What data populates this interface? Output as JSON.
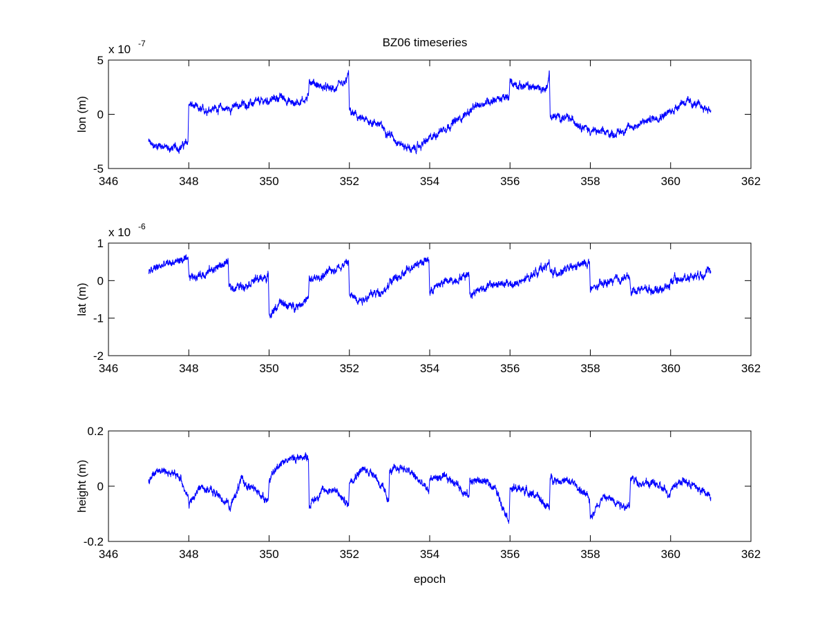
{
  "figure": {
    "title": "BZ06 timeseries",
    "background": "#ffffff",
    "line_color": "#0000ff"
  },
  "chart_data": [
    {
      "type": "line",
      "title": "BZ06 timeseries",
      "ylabel": "lon (m)",
      "xlabel": "",
      "exponent_label": "x 10",
      "exponent": "-7",
      "xlim": [
        346,
        362
      ],
      "ylim": [
        -5,
        5
      ],
      "xticks": [
        "346",
        "348",
        "350",
        "352",
        "354",
        "356",
        "358",
        "360",
        "362"
      ],
      "yticks": [
        "-5",
        "0",
        "5"
      ],
      "grid": false,
      "series": [
        {
          "x": [
            347.0,
            347.1,
            347.3,
            347.5,
            347.8,
            347.98,
            348.0,
            348.3,
            348.6,
            349.0,
            349.3,
            349.6,
            350.0,
            350.3,
            350.6,
            350.98,
            351.0,
            351.3,
            351.6,
            351.9,
            351.98,
            352.0,
            352.3,
            352.7,
            353.0,
            353.3,
            353.6,
            354.0,
            354.3,
            354.6,
            355.0,
            355.3,
            355.6,
            355.98,
            356.0,
            356.3,
            356.6,
            356.9,
            356.98,
            357.0,
            357.3,
            357.6,
            358.0,
            358.3,
            358.6,
            359.0,
            359.3,
            359.6,
            360.0,
            360.3,
            360.6,
            361.0
          ],
          "values": [
            -2.5,
            -3.0,
            -2.8,
            -3.2,
            -3.0,
            -2.6,
            1.0,
            0.3,
            0.6,
            0.5,
            0.9,
            1.0,
            1.3,
            1.6,
            1.0,
            1.5,
            3.2,
            2.5,
            2.3,
            2.8,
            3.8,
            0.3,
            -0.5,
            -0.8,
            -1.8,
            -2.8,
            -3.3,
            -2.3,
            -1.4,
            -0.8,
            0.3,
            1.0,
            1.4,
            1.5,
            3.0,
            2.6,
            2.5,
            2.3,
            3.8,
            -0.2,
            -0.3,
            -0.6,
            -1.5,
            -1.7,
            -1.8,
            -1.2,
            -0.8,
            -0.3,
            0.2,
            1.2,
            0.9,
            0.4
          ]
        }
      ]
    },
    {
      "type": "line",
      "title": "",
      "ylabel": "lat (m)",
      "xlabel": "",
      "exponent_label": "x 10",
      "exponent": "-6",
      "xlim": [
        346,
        362
      ],
      "ylim": [
        -2,
        1
      ],
      "xticks": [
        "346",
        "348",
        "350",
        "352",
        "354",
        "356",
        "358",
        "360",
        "362"
      ],
      "yticks": [
        "-2",
        "-1",
        "0",
        "1"
      ],
      "grid": false,
      "series": [
        {
          "x": [
            347.0,
            347.2,
            347.5,
            347.8,
            347.98,
            348.0,
            348.3,
            348.6,
            348.98,
            349.0,
            349.3,
            349.6,
            349.98,
            350.0,
            350.3,
            350.6,
            350.98,
            351.0,
            351.3,
            351.6,
            351.98,
            352.0,
            352.3,
            352.6,
            352.98,
            353.0,
            353.3,
            353.6,
            353.98,
            354.0,
            354.3,
            354.6,
            354.98,
            355.0,
            355.3,
            355.6,
            355.98,
            356.0,
            356.3,
            356.6,
            356.98,
            357.0,
            357.3,
            357.6,
            357.98,
            358.0,
            358.3,
            358.6,
            358.98,
            359.0,
            359.3,
            359.6,
            359.98,
            360.0,
            360.3,
            360.6,
            361.0
          ],
          "values": [
            0.2,
            0.35,
            0.45,
            0.55,
            0.5,
            0.1,
            0.15,
            0.3,
            0.5,
            -0.2,
            -0.15,
            0.0,
            0.1,
            -0.9,
            -0.6,
            -0.7,
            -0.5,
            0.0,
            0.1,
            0.3,
            0.5,
            -0.4,
            -0.5,
            -0.35,
            -0.2,
            0.0,
            0.1,
            0.45,
            0.55,
            -0.3,
            -0.05,
            0.0,
            0.2,
            -0.35,
            -0.2,
            -0.1,
            -0.1,
            -0.1,
            -0.05,
            0.2,
            0.45,
            0.2,
            0.25,
            0.35,
            0.5,
            -0.25,
            -0.1,
            0.0,
            0.1,
            -0.3,
            -0.2,
            -0.25,
            -0.15,
            0.0,
            0.05,
            0.15,
            0.25
          ]
        }
      ]
    },
    {
      "type": "line",
      "title": "",
      "ylabel": "height (m)",
      "xlabel": "epoch",
      "exponent_label": "",
      "exponent": "",
      "xlim": [
        346,
        362
      ],
      "ylim": [
        -0.2,
        0.2
      ],
      "xticks": [
        "346",
        "348",
        "350",
        "352",
        "354",
        "356",
        "358",
        "360",
        "362"
      ],
      "yticks": [
        "-0.2",
        "0",
        "0.2"
      ],
      "grid": false,
      "series": [
        {
          "x": [
            347.0,
            347.2,
            347.5,
            347.8,
            347.98,
            348.0,
            348.3,
            348.6,
            348.98,
            349.0,
            349.3,
            349.6,
            349.98,
            350.0,
            350.3,
            350.6,
            350.98,
            351.0,
            351.3,
            351.6,
            351.98,
            352.0,
            352.3,
            352.6,
            352.98,
            353.0,
            353.3,
            353.6,
            353.98,
            354.0,
            354.3,
            354.6,
            354.98,
            355.0,
            355.3,
            355.6,
            355.98,
            356.0,
            356.3,
            356.6,
            356.98,
            357.0,
            357.3,
            357.6,
            357.98,
            358.0,
            358.3,
            358.6,
            358.98,
            359.0,
            359.3,
            359.6,
            359.98,
            360.0,
            360.3,
            360.6,
            361.0
          ],
          "values": [
            0.02,
            0.06,
            0.05,
            0.03,
            -0.04,
            -0.07,
            0.0,
            -0.02,
            -0.06,
            -0.09,
            0.02,
            -0.01,
            -0.05,
            0.02,
            0.09,
            0.1,
            0.11,
            -0.07,
            -0.02,
            -0.01,
            -0.07,
            0.02,
            0.06,
            0.05,
            -0.05,
            0.05,
            0.07,
            0.04,
            -0.02,
            0.03,
            0.03,
            0.02,
            -0.04,
            0.02,
            0.02,
            0.0,
            -0.12,
            -0.01,
            -0.01,
            -0.03,
            -0.08,
            0.03,
            0.02,
            0.01,
            -0.05,
            -0.11,
            -0.04,
            -0.05,
            -0.08,
            0.03,
            0.01,
            0.01,
            -0.03,
            0.0,
            0.02,
            0.0,
            -0.04
          ]
        }
      ]
    }
  ]
}
